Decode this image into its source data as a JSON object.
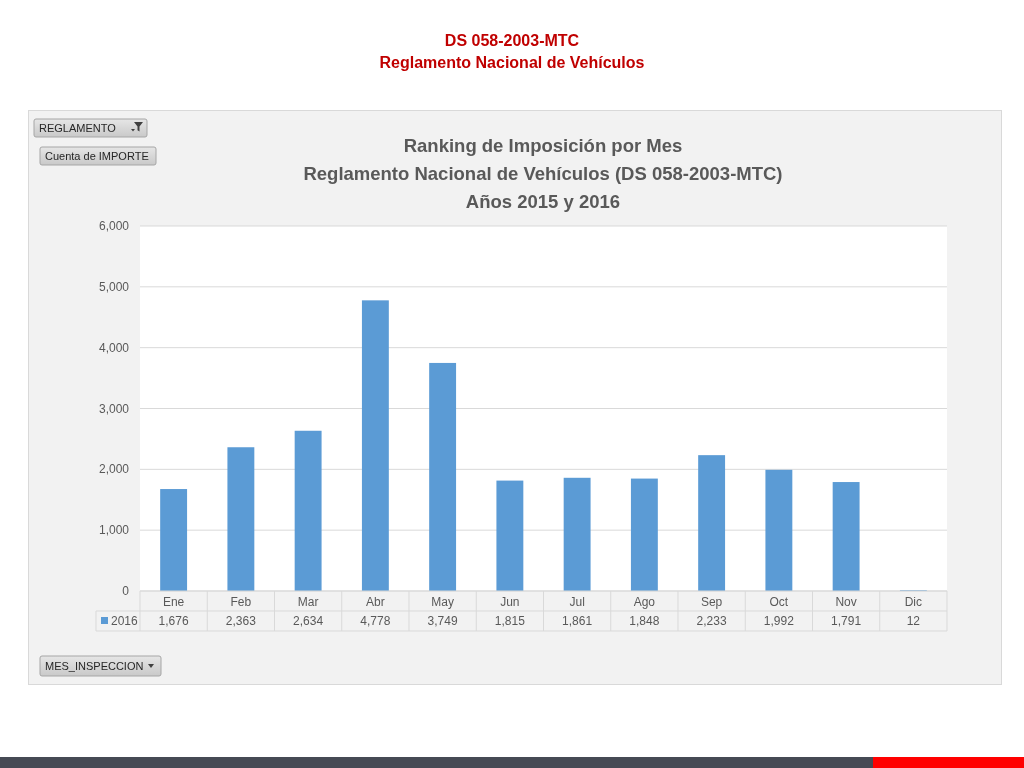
{
  "chart_data": {
    "type": "bar",
    "title": "Ranking de Imposición por Mes\nReglamento Nacional de Vehículos (DS 058-2003-MTC)\nAños 2015 y 2016",
    "annotations": [
      "DS 058-2003-MTC",
      "Reglamento Nacional de Vehículos",
      "REGLAMENTO",
      "Cuenta de IMPORTE",
      "MES_INSPECCION"
    ],
    "categories": [
      "Ene",
      "Feb",
      "Mar",
      "Abr",
      "May",
      "Jun",
      "Jul",
      "Ago",
      "Sep",
      "Oct",
      "Nov",
      "Dic"
    ],
    "series": [
      {
        "name": "2016",
        "color": "#5b9bd5",
        "values": [
          1676,
          2363,
          2634,
          4778,
          3749,
          1815,
          1861,
          1848,
          2233,
          1992,
          1791,
          12
        ],
        "value_labels": [
          "1,676",
          "2,363",
          "2,634",
          "4,778",
          "3,749",
          "1,815",
          "1,861",
          "1,848",
          "2,233",
          "1,992",
          "1,791",
          "12"
        ]
      }
    ],
    "ylim": [
      0,
      6000
    ],
    "yticks": [
      0,
      {
        "value": 1000,
        "label": "1,000"
      },
      {
        "value": 2000,
        "label": "2,000"
      },
      {
        "value": 3000,
        "label": "3,000"
      },
      {
        "value": 4000,
        "label": "4,000"
      },
      {
        "value": 5000,
        "label": "5,000"
      },
      {
        "value": 6000,
        "label": "6,000"
      }
    ],
    "grid": "y",
    "legend": "bottom"
  }
}
